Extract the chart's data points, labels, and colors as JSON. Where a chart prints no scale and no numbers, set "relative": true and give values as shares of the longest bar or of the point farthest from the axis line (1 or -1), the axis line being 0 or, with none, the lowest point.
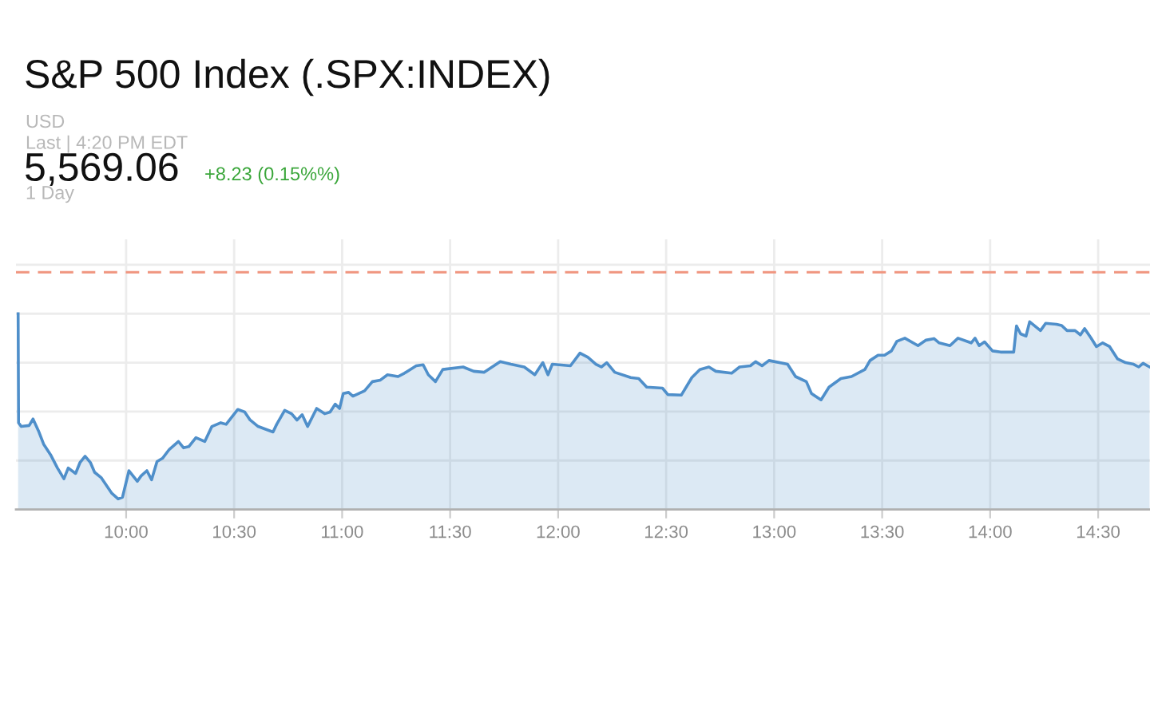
{
  "chart_data": {
    "type": "area",
    "title": "S&P 500 Index (.SPX:INDEX)",
    "annotations": [
      "USD",
      "Last | 4:20 PM EDT",
      "5,569.06",
      "+8.23 (0.15%%)",
      "1 Day"
    ],
    "relative": true,
    "color": "#4f8fca",
    "grid": true,
    "x": [
      9.5,
      9.502,
      9.514,
      9.551,
      9.569,
      9.594,
      9.618,
      9.65,
      9.682,
      9.712,
      9.732,
      9.766,
      9.786,
      9.81,
      9.835,
      9.854,
      9.884,
      9.934,
      9.963,
      9.983,
      10.013,
      10.052,
      10.069,
      10.096,
      10.118,
      10.143,
      10.168,
      10.2,
      10.242,
      10.266,
      10.29,
      10.323,
      10.364,
      10.397,
      10.438,
      10.463,
      10.517,
      10.549,
      10.574,
      10.611,
      10.68,
      10.697,
      10.734,
      10.766,
      10.791,
      10.815,
      10.84,
      10.882,
      10.919,
      10.944,
      10.968,
      10.988,
      11.005,
      11.03,
      11.05,
      11.104,
      11.14,
      11.177,
      11.21,
      11.259,
      11.288,
      11.343,
      11.375,
      11.399,
      11.432,
      11.466,
      11.56,
      11.609,
      11.658,
      11.732,
      11.781,
      11.843,
      11.892,
      11.929,
      11.953,
      11.973,
      12.057,
      12.101,
      12.138,
      12.175,
      12.2,
      12.225,
      12.262,
      12.336,
      12.373,
      12.41,
      12.483,
      12.508,
      12.57,
      12.619,
      12.656,
      12.698,
      12.73,
      12.803,
      12.84,
      12.89,
      12.914,
      12.944,
      12.976,
      13.062,
      13.099,
      13.149,
      13.173,
      13.217,
      13.254,
      13.309,
      13.358,
      13.42,
      13.444,
      13.481,
      13.511,
      13.543,
      13.568,
      13.605,
      13.666,
      13.703,
      13.74,
      13.764,
      13.814,
      13.851,
      13.912,
      13.93,
      13.949,
      13.974,
      14.011,
      14.048,
      14.109,
      14.122,
      14.141,
      14.166,
      14.183,
      14.233,
      14.257,
      14.307,
      14.331,
      14.356,
      14.393,
      14.418,
      14.437,
      14.466,
      14.492,
      14.521,
      14.553,
      14.59,
      14.627,
      14.664,
      14.688,
      14.708,
      14.738
    ],
    "values": [
      1.0,
      0.443,
      0.424,
      0.429,
      0.462,
      0.402,
      0.334,
      0.28,
      0.212,
      0.157,
      0.212,
      0.184,
      0.239,
      0.272,
      0.239,
      0.19,
      0.163,
      0.082,
      0.054,
      0.062,
      0.198,
      0.144,
      0.171,
      0.198,
      0.152,
      0.245,
      0.261,
      0.307,
      0.347,
      0.315,
      0.321,
      0.367,
      0.347,
      0.424,
      0.443,
      0.435,
      0.511,
      0.498,
      0.457,
      0.424,
      0.396,
      0.435,
      0.506,
      0.489,
      0.457,
      0.484,
      0.424,
      0.516,
      0.489,
      0.498,
      0.538,
      0.516,
      0.592,
      0.598,
      0.579,
      0.606,
      0.653,
      0.661,
      0.688,
      0.679,
      0.696,
      0.734,
      0.739,
      0.688,
      0.653,
      0.715,
      0.728,
      0.706,
      0.701,
      0.755,
      0.742,
      0.728,
      0.688,
      0.75,
      0.688,
      0.742,
      0.734,
      0.799,
      0.777,
      0.742,
      0.728,
      0.75,
      0.701,
      0.674,
      0.669,
      0.625,
      0.62,
      0.587,
      0.584,
      0.674,
      0.715,
      0.728,
      0.706,
      0.696,
      0.728,
      0.734,
      0.755,
      0.734,
      0.761,
      0.742,
      0.679,
      0.653,
      0.592,
      0.56,
      0.625,
      0.669,
      0.679,
      0.715,
      0.761,
      0.788,
      0.788,
      0.81,
      0.859,
      0.875,
      0.837,
      0.865,
      0.873,
      0.851,
      0.837,
      0.875,
      0.851,
      0.875,
      0.837,
      0.856,
      0.81,
      0.804,
      0.804,
      0.938,
      0.897,
      0.886,
      0.959,
      0.914,
      0.951,
      0.946,
      0.94,
      0.914,
      0.914,
      0.892,
      0.924,
      0.878,
      0.832,
      0.851,
      0.832,
      0.769,
      0.75,
      0.742,
      0.728,
      0.747,
      0.728
    ],
    "xlim": [
      9.49,
      14.74
    ],
    "xticks": [
      {
        "value": 10,
        "label": "10:00"
      },
      {
        "value": 10.5,
        "label": "10:30"
      },
      {
        "value": 11,
        "label": "11:00"
      },
      {
        "value": 11.5,
        "label": "11:30"
      },
      {
        "value": 12,
        "label": "12:00"
      },
      {
        "value": 12.5,
        "label": "12:30"
      },
      {
        "value": 13,
        "label": "13:00"
      },
      {
        "value": 13.5,
        "label": "13:30"
      },
      {
        "value": 14,
        "label": "14:00"
      },
      {
        "value": 14.5,
        "label": "14:30"
      }
    ],
    "ref_lines": [
      {
        "axis": "y",
        "value": 1.212,
        "color": "#f0957f",
        "line_style": "dashed"
      }
    ]
  }
}
